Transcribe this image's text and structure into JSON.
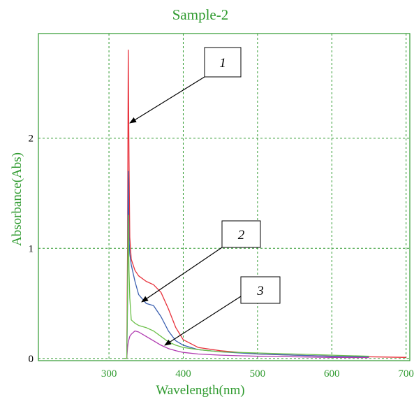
{
  "chart_data": {
    "type": "line",
    "title": "Sample-2",
    "xlabel": "Wavelength(nm)",
    "ylabel": "Absorbance(Abs)",
    "xlim": [
      205,
      705
    ],
    "ylim": [
      -0.02,
      2.95
    ],
    "x_ticks": [
      300,
      400,
      500,
      600,
      700
    ],
    "x_tick_labels": [
      "300",
      "400",
      "500",
      "600",
      "700"
    ],
    "y_ticks": [
      0,
      1,
      2
    ],
    "y_tick_labels": [
      "0",
      "1",
      "2"
    ],
    "grid": true,
    "grid_x": [
      300,
      400,
      500,
      600,
      700
    ],
    "grid_y": [
      0,
      1,
      2
    ],
    "colors": {
      "frame": "#2e9a2e",
      "grid": "#2e9a2e",
      "series_1": "#e8323c",
      "series_2": "#3a5fb0",
      "series_3": "#b03ab0",
      "series_4": "#6cc04a"
    },
    "series": [
      {
        "id": "1",
        "color": "#e8323c",
        "x": [
          320,
          322,
          324,
          325,
          326,
          327,
          328,
          330,
          335,
          340,
          350,
          360,
          370,
          380,
          390,
          400,
          420,
          450,
          500,
          550,
          600,
          650,
          700
        ],
        "y": [
          0.0,
          0.0,
          0.0,
          1.0,
          2.8,
          1.8,
          1.1,
          0.9,
          0.8,
          0.75,
          0.7,
          0.67,
          0.6,
          0.45,
          0.28,
          0.17,
          0.1,
          0.07,
          0.04,
          0.03,
          0.02,
          0.015,
          0.01
        ]
      },
      {
        "id": "2",
        "color": "#3a5fb0",
        "x": [
          320,
          322,
          324,
          325,
          326,
          327,
          328,
          330,
          335,
          340,
          350,
          360,
          370,
          380,
          390,
          400,
          420,
          450,
          500,
          550,
          600,
          650
        ],
        "y": [
          0.0,
          0.0,
          0.0,
          0.5,
          1.7,
          1.1,
          0.95,
          0.85,
          0.7,
          0.58,
          0.5,
          0.48,
          0.38,
          0.25,
          0.16,
          0.12,
          0.08,
          0.06,
          0.04,
          0.03,
          0.02,
          0.015
        ]
      },
      {
        "id": "3",
        "color": "#b03ab0",
        "x": [
          320,
          322,
          324,
          325,
          326,
          328,
          330,
          335,
          340,
          350,
          360,
          370,
          380,
          390,
          400,
          420,
          450,
          500,
          550,
          600,
          650
        ],
        "y": [
          0.0,
          0.0,
          0.0,
          0.1,
          0.15,
          0.2,
          0.22,
          0.25,
          0.24,
          0.2,
          0.16,
          0.12,
          0.09,
          0.07,
          0.055,
          0.04,
          0.03,
          0.02,
          0.015,
          0.01,
          0.008
        ]
      },
      {
        "id": "4",
        "color": "#6cc04a",
        "x": [
          320,
          322,
          324,
          325,
          326,
          327,
          328,
          330,
          335,
          340,
          350,
          360,
          370,
          380,
          390,
          400,
          420,
          450,
          500,
          550,
          600,
          650
        ],
        "y": [
          0.0,
          0.0,
          0.0,
          0.6,
          1.3,
          0.8,
          0.55,
          0.35,
          0.32,
          0.3,
          0.28,
          0.25,
          0.2,
          0.15,
          0.12,
          0.1,
          0.08,
          0.06,
          0.05,
          0.04,
          0.03,
          0.02
        ]
      }
    ],
    "annotations": [
      {
        "label": "1"
      },
      {
        "label": "2"
      },
      {
        "label": "3"
      }
    ]
  }
}
